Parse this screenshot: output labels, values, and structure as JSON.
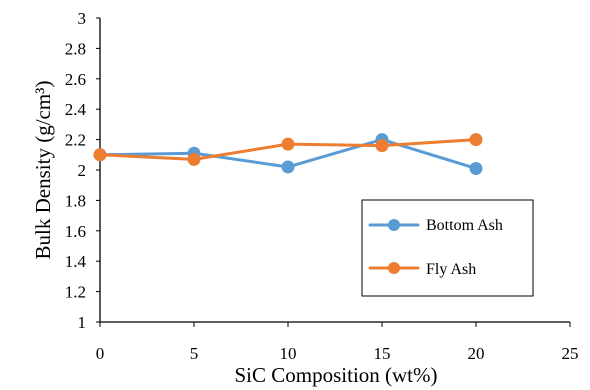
{
  "chart_data": {
    "type": "line",
    "xlabel": "SiC Composition (wt%)",
    "ylabel": "Bulk Density (g/cm³)",
    "xlim": [
      0,
      25
    ],
    "ylim": [
      1,
      3
    ],
    "xticks": [
      "0",
      "5",
      "10",
      "15",
      "20",
      "25"
    ],
    "yticks": [
      "1",
      "1.2",
      "1.4",
      "1.6",
      "1.8",
      "2",
      "2.2",
      "2.4",
      "2.6",
      "2.8",
      "3"
    ],
    "grid": false,
    "legend_position": "bottom-right",
    "x": [
      0,
      5,
      10,
      15,
      20
    ],
    "series": [
      {
        "name": "Bottom Ash",
        "color": "#5b9bd5",
        "values": [
          2.1,
          2.11,
          2.02,
          2.2,
          2.01
        ]
      },
      {
        "name": "Fly Ash",
        "color": "#ed7d31",
        "values": [
          2.1,
          2.07,
          2.17,
          2.16,
          2.2
        ]
      }
    ]
  }
}
